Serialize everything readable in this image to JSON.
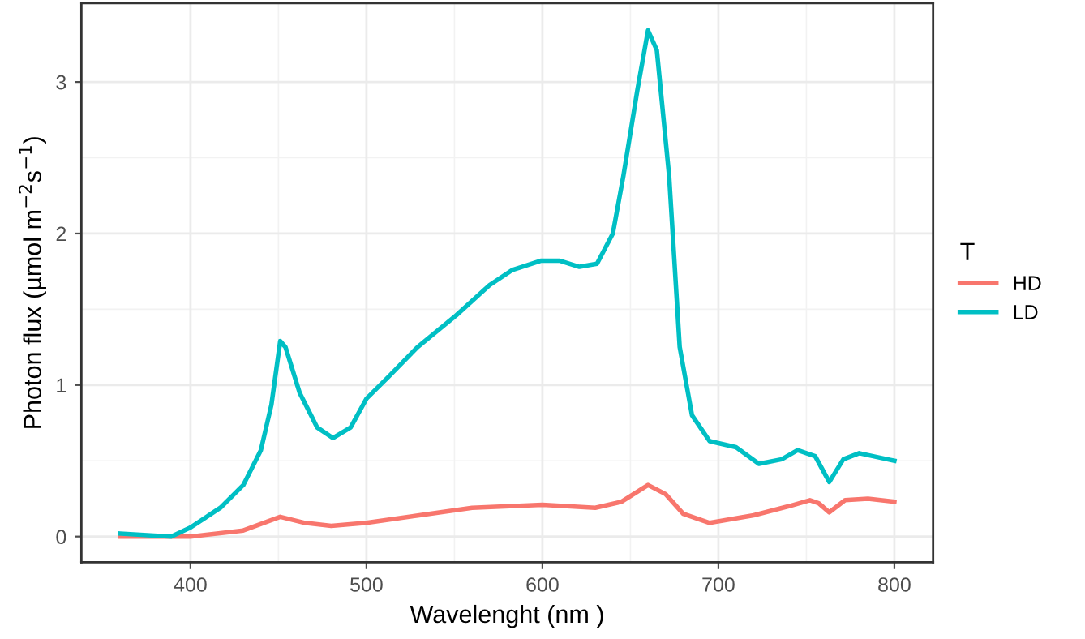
{
  "chart_data": {
    "type": "line",
    "xlabel": "Wavelenght (nm )",
    "ylabel": "Photon flux (µmol m$^{−2}$s$^{−1}$)",
    "legend_title": "T",
    "legend": "right",
    "grid": true,
    "line_style": "solid",
    "xlim": [
      338,
      822
    ],
    "ylim": [
      -0.17,
      3.52
    ],
    "xticks": [
      400,
      500,
      600,
      700,
      800
    ],
    "yticks": [
      0,
      1,
      2,
      3
    ],
    "series": [
      {
        "name": "HD",
        "color": "#f8766d",
        "x": [
          360,
          400,
          430,
          451,
          465,
          480,
          500,
          530,
          560,
          600,
          630,
          645,
          660,
          670,
          680,
          695,
          720,
          740,
          752,
          757,
          763,
          772,
          785,
          800
        ],
        "values": [
          0,
          0,
          0.04,
          0.13,
          0.09,
          0.07,
          0.09,
          0.14,
          0.19,
          0.21,
          0.19,
          0.23,
          0.34,
          0.28,
          0.15,
          0.09,
          0.14,
          0.2,
          0.24,
          0.22,
          0.16,
          0.24,
          0.25,
          0.23
        ]
      },
      {
        "name": "LD",
        "color": "#00bfc4",
        "x": [
          360,
          389,
          400,
          417,
          430,
          440,
          446,
          451,
          454,
          462,
          472,
          481,
          491,
          500,
          513,
          529,
          551,
          570,
          583,
          599,
          610,
          621,
          631,
          640,
          646,
          654,
          660,
          665,
          672,
          678,
          685,
          695,
          710,
          723,
          736,
          745,
          755,
          763,
          771,
          780,
          796,
          800
        ],
        "values": [
          0.02,
          0,
          0.06,
          0.19,
          0.34,
          0.57,
          0.87,
          1.29,
          1.25,
          0.95,
          0.72,
          0.65,
          0.72,
          0.91,
          1.06,
          1.25,
          1.46,
          1.66,
          1.76,
          1.82,
          1.82,
          1.78,
          1.8,
          2.0,
          2.38,
          2.95,
          3.34,
          3.21,
          2.38,
          1.25,
          0.8,
          0.63,
          0.59,
          0.48,
          0.51,
          0.57,
          0.53,
          0.36,
          0.51,
          0.55,
          0.51,
          0.5
        ]
      }
    ]
  }
}
